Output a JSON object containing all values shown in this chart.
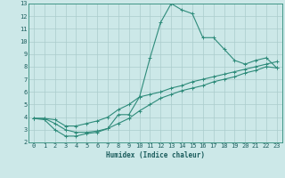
{
  "line1": {
    "x": [
      0,
      1,
      2,
      3,
      4,
      5,
      6,
      7,
      8,
      9,
      10,
      11,
      12,
      13,
      14,
      15,
      16,
      17,
      18,
      19,
      20,
      21,
      22,
      23
    ],
    "y": [
      3.9,
      3.8,
      3.0,
      2.5,
      2.5,
      2.7,
      2.8,
      3.1,
      4.2,
      4.2,
      5.6,
      8.7,
      11.5,
      13.0,
      12.5,
      12.2,
      10.3,
      10.3,
      9.4,
      8.5,
      8.2,
      8.5,
      8.7,
      7.9
    ],
    "color": "#2e8b7a",
    "linewidth": 0.8,
    "marker": "+"
  },
  "line2": {
    "x": [
      0,
      1,
      2,
      3,
      4,
      5,
      6,
      7,
      8,
      9,
      10,
      11,
      12,
      13,
      14,
      15,
      16,
      17,
      18,
      19,
      20,
      21,
      22,
      23
    ],
    "y": [
      3.9,
      3.9,
      3.8,
      3.3,
      3.3,
      3.5,
      3.7,
      4.0,
      4.6,
      5.0,
      5.6,
      5.8,
      6.0,
      6.3,
      6.5,
      6.8,
      7.0,
      7.2,
      7.4,
      7.6,
      7.8,
      8.0,
      8.2,
      8.4
    ],
    "color": "#2e8b7a",
    "linewidth": 0.8,
    "marker": "+"
  },
  "line3": {
    "x": [
      0,
      1,
      2,
      3,
      4,
      5,
      6,
      7,
      8,
      9,
      10,
      11,
      12,
      13,
      14,
      15,
      16,
      17,
      18,
      19,
      20,
      21,
      22,
      23
    ],
    "y": [
      3.9,
      3.9,
      3.5,
      3.0,
      2.8,
      2.8,
      2.9,
      3.1,
      3.5,
      3.9,
      4.5,
      5.0,
      5.5,
      5.8,
      6.1,
      6.3,
      6.5,
      6.8,
      7.0,
      7.2,
      7.5,
      7.7,
      8.0,
      7.9
    ],
    "color": "#2e8b7a",
    "linewidth": 0.8,
    "marker": "+"
  },
  "bg_color": "#cce8e8",
  "grid_color": "#aacccc",
  "axis_color": "#2e8b7a",
  "text_color": "#1a5c5c",
  "xlabel": "Humidex (Indice chaleur)",
  "xlim": [
    -0.5,
    23.5
  ],
  "ylim": [
    2,
    13
  ],
  "xticks": [
    0,
    1,
    2,
    3,
    4,
    5,
    6,
    7,
    8,
    9,
    10,
    11,
    12,
    13,
    14,
    15,
    16,
    17,
    18,
    19,
    20,
    21,
    22,
    23
  ],
  "yticks": [
    2,
    3,
    4,
    5,
    6,
    7,
    8,
    9,
    10,
    11,
    12,
    13
  ],
  "label_fontsize": 5.5,
  "tick_fontsize": 5.0
}
